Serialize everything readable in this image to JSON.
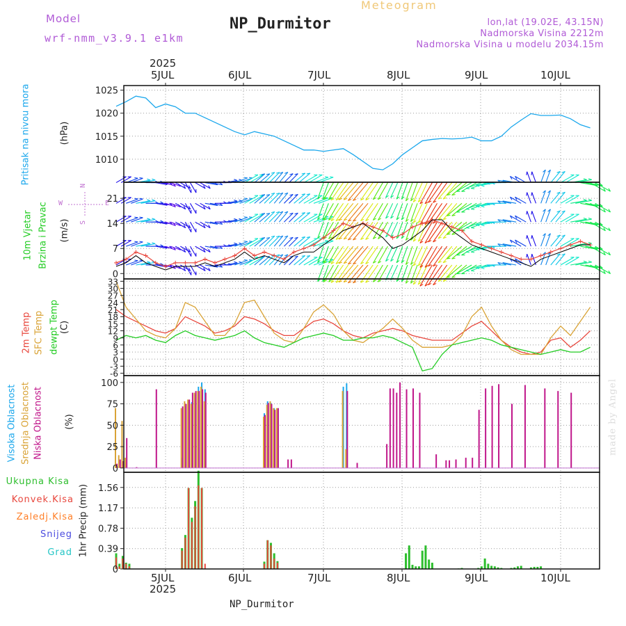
{
  "header": {
    "model_label": "Model",
    "model_version": "wrf-nmm_v3.9.1 e1km",
    "title": "NP_Durmitor",
    "meteogram_label": "Meteogram",
    "location": "lon,lat (19.02E, 43.15N)",
    "elevation": "Nadmorska Visina 2212m",
    "model_elevation": "Nadmorska Visina u modelu 2034.15m"
  },
  "time_axis": {
    "year": "2025",
    "day_labels": [
      "5JUL",
      "6JUL",
      "7JUL",
      "8JUL",
      "9JUL",
      "10JUL"
    ],
    "footer": "NP_Durmitor"
  },
  "watermark": "made by Angel",
  "colors": {
    "pressure": "#1aa7ec",
    "wind": "#000000",
    "wind_gust": "#e8463c",
    "t2m": "#e8463c",
    "sfc": "#d9a336",
    "dewpoint": "#22cc22",
    "cloud_high": "#1aa7ec",
    "cloud_mid": "#d9a336",
    "cloud_low": "#c0168a",
    "total_precip": "#2dbe2d",
    "conv_precip": "#e8463c",
    "frozen_precip": "#ff7f27",
    "snow": "#4a4adf",
    "hail": "#22c5c5"
  },
  "chart_data": [
    {
      "type": "line",
      "panel": "pressure",
      "side_label": "Pritisak na nivou mora",
      "unit": "(hPa)",
      "ylim": [
        1005,
        1026
      ],
      "yticks": [
        "1025",
        "1020",
        "1015",
        "1010"
      ],
      "x": [
        0,
        3,
        6,
        9,
        12,
        15,
        18,
        21,
        24,
        27,
        30,
        33,
        36,
        39,
        42,
        45,
        48,
        51,
        54,
        57,
        60,
        63,
        66,
        69,
        72,
        75,
        78,
        81,
        84,
        87,
        90,
        93,
        96,
        99,
        102,
        105,
        108,
        111,
        114,
        117,
        120,
        123,
        126,
        129,
        132,
        135,
        138,
        141,
        144
      ],
      "series": [
        {
          "values": [
            1021.5,
            1022.5,
            1023.7,
            1023.3,
            1021.2,
            1022.0,
            1021.4,
            1020.0,
            1020.0,
            1019.0,
            1018.0,
            1017.0,
            1016.0,
            1015.3,
            1016.0,
            1015.5,
            1015.0,
            1014.0,
            1013.0,
            1012.0,
            1012.0,
            1011.7,
            1012.0,
            1012.3,
            1011.0,
            1009.5,
            1008.0,
            1007.7,
            1009.0,
            1011.0,
            1012.5,
            1014.0,
            1014.3,
            1014.5,
            1014.4,
            1014.5,
            1014.8,
            1014.0,
            1014.0,
            1015.0,
            1017.0,
            1018.5,
            1019.9,
            1019.5,
            1019.5,
            1019.6,
            1018.8,
            1017.5,
            1016.8
          ]
        }
      ]
    },
    {
      "type": "line",
      "panel": "wind",
      "side_label_1": "10m Vjetar",
      "side_label_2": "Brzina i Pravac",
      "unit": "(m/s)",
      "legend_arrows": {
        "north": "N",
        "south": "S",
        "west": "W",
        "east": "E"
      },
      "ylim": [
        -1.5,
        25.5
      ],
      "yticks": [
        "21",
        "14",
        "7",
        "0"
      ],
      "x": [
        0,
        3,
        6,
        9,
        12,
        15,
        18,
        21,
        24,
        27,
        30,
        33,
        36,
        39,
        42,
        45,
        48,
        51,
        54,
        57,
        60,
        63,
        66,
        69,
        72,
        75,
        78,
        81,
        84,
        87,
        90,
        93,
        96,
        99,
        102,
        105,
        108,
        111,
        114,
        117,
        120,
        123,
        126,
        129,
        132,
        135,
        138,
        141,
        144
      ],
      "series": [
        {
          "name": "speed",
          "values": [
            2,
            3,
            5,
            3,
            2,
            1,
            2,
            2,
            2,
            3,
            2,
            3,
            4,
            6,
            4,
            5,
            4,
            3,
            5,
            6,
            6,
            8,
            10,
            12,
            13,
            14,
            12,
            10,
            7,
            8,
            10,
            12,
            15,
            15,
            12,
            10,
            8,
            7,
            6,
            5,
            4,
            3,
            2,
            4,
            5,
            6,
            7,
            8,
            8
          ]
        },
        {
          "name": "gust",
          "values": [
            3,
            4,
            6,
            5,
            3,
            2,
            3,
            3,
            3,
            4,
            3,
            4,
            5,
            7,
            5,
            6,
            5,
            4,
            6,
            7,
            8,
            10,
            12,
            14,
            13,
            14,
            13,
            12,
            10,
            11,
            13,
            14,
            15,
            14,
            13,
            12,
            9,
            8,
            7,
            6,
            5,
            4,
            4,
            5,
            6,
            7,
            8,
            9,
            8
          ]
        }
      ],
      "barb_direction_deg": [
        60,
        70,
        80,
        90,
        100,
        110,
        120,
        150,
        120,
        100,
        90,
        80,
        70,
        60,
        50,
        45,
        40,
        45,
        50,
        60,
        70,
        200,
        210,
        215,
        220,
        220,
        215,
        210,
        205,
        200,
        200,
        205,
        210,
        215,
        220,
        230,
        240,
        250,
        260,
        270,
        280,
        300,
        340,
        20,
        40,
        60,
        80,
        100,
        120
      ]
    },
    {
      "type": "line",
      "panel": "temperature",
      "side_label_1": "2m Temp",
      "side_label_2": "SFC Temp",
      "side_label_3": "dewpt Temp",
      "unit": "(C)",
      "ylim": [
        -7,
        34
      ],
      "yticks": [
        "33",
        "30",
        "27",
        "24",
        "21",
        "18",
        "15",
        "12",
        "9",
        "6",
        "3",
        "0",
        "-3",
        "-6"
      ],
      "x": [
        0,
        3,
        6,
        9,
        12,
        15,
        18,
        21,
        24,
        27,
        30,
        33,
        36,
        39,
        42,
        45,
        48,
        51,
        54,
        57,
        60,
        63,
        66,
        69,
        72,
        75,
        78,
        81,
        84,
        87,
        90,
        93,
        96,
        99,
        102,
        105,
        108,
        111,
        114,
        117,
        120,
        123,
        126,
        129,
        132,
        135,
        138,
        141,
        144
      ],
      "series": [
        {
          "name": "2m Temp",
          "values": [
            21,
            18,
            16,
            14,
            12,
            11,
            13,
            18,
            16,
            14,
            11,
            12,
            14,
            18,
            17,
            15,
            12,
            10,
            10,
            13,
            16,
            17,
            15,
            12,
            10,
            9,
            11,
            12,
            13,
            12,
            10,
            9,
            8,
            8,
            8,
            11,
            14,
            16,
            12,
            8,
            5,
            3,
            2,
            3,
            8,
            9,
            5,
            8,
            12
          ]
        },
        {
          "name": "SFC Temp",
          "values": [
            33,
            22,
            17,
            12,
            10,
            9,
            13,
            24,
            22,
            16,
            10,
            10,
            15,
            24,
            25,
            18,
            11,
            8,
            7,
            13,
            20,
            23,
            19,
            12,
            8,
            7,
            10,
            13,
            17,
            13,
            8,
            5,
            5,
            5,
            6,
            10,
            18,
            22,
            14,
            8,
            4,
            2,
            2,
            2,
            9,
            14,
            10,
            16,
            22
          ]
        },
        {
          "name": "dewpt Temp",
          "values": [
            8,
            10,
            9,
            10,
            8,
            7,
            10,
            12,
            10,
            9,
            8,
            9,
            10,
            12,
            9,
            7,
            6,
            5,
            7,
            9,
            10,
            11,
            10,
            8,
            8,
            9,
            9,
            10,
            9,
            7,
            5,
            -5,
            -4,
            2,
            6,
            7,
            8,
            9,
            8,
            6,
            5,
            4,
            3,
            2,
            3,
            4,
            3,
            3,
            5
          ]
        }
      ]
    },
    {
      "type": "bar",
      "panel": "clouds",
      "side_label_1": "Visoka Oblacnost",
      "side_label_2": "Srednja Oblacnost",
      "side_label_3": "Niska Oblacnost",
      "unit": "(%)",
      "ylim": [
        -5,
        108
      ],
      "yticks": [
        "100",
        "75",
        "50",
        "25",
        "0"
      ],
      "high_cloud": [
        [
          20,
          12
        ],
        [
          21,
          72
        ],
        [
          22,
          79
        ],
        [
          23,
          77
        ],
        [
          24,
          86
        ],
        [
          25,
          95
        ],
        [
          26,
          100
        ],
        [
          27,
          92
        ],
        [
          45,
          64
        ],
        [
          46,
          78
        ],
        [
          47,
          76
        ],
        [
          48,
          70
        ],
        [
          49,
          68
        ],
        [
          69,
          95
        ],
        [
          70,
          99
        ]
      ],
      "mid_cloud": [
        [
          0,
          70
        ],
        [
          1,
          15
        ],
        [
          2,
          55
        ],
        [
          3,
          12
        ],
        [
          20,
          70
        ],
        [
          21,
          78
        ],
        [
          22,
          80
        ],
        [
          23,
          75
        ],
        [
          24,
          88
        ],
        [
          25,
          90
        ],
        [
          26,
          95
        ],
        [
          27,
          78
        ],
        [
          45,
          60
        ],
        [
          46,
          74
        ],
        [
          47,
          78
        ],
        [
          48,
          70
        ],
        [
          49,
          70
        ],
        [
          69,
          90
        ],
        [
          70,
          22
        ]
      ],
      "low_cloud": [
        [
          0,
          5
        ],
        [
          1,
          10
        ],
        [
          2,
          8
        ],
        [
          3,
          35
        ],
        [
          6,
          1
        ],
        [
          12,
          92
        ],
        [
          20,
          72
        ],
        [
          21,
          75
        ],
        [
          22,
          80
        ],
        [
          23,
          88
        ],
        [
          24,
          90
        ],
        [
          25,
          90
        ],
        [
          26,
          92
        ],
        [
          27,
          88
        ],
        [
          45,
          62
        ],
        [
          46,
          76
        ],
        [
          47,
          75
        ],
        [
          48,
          68
        ],
        [
          49,
          70
        ],
        [
          52,
          10
        ],
        [
          53,
          10
        ],
        [
          70,
          90
        ],
        [
          73,
          6
        ],
        [
          82,
          28
        ],
        [
          83,
          93
        ],
        [
          84,
          93
        ],
        [
          85,
          88
        ],
        [
          86,
          100
        ],
        [
          88,
          92
        ],
        [
          90,
          93
        ],
        [
          92,
          88
        ],
        [
          97,
          16
        ],
        [
          100,
          9
        ],
        [
          101,
          9
        ],
        [
          103,
          10
        ],
        [
          106,
          12
        ],
        [
          108,
          12
        ],
        [
          110,
          68
        ],
        [
          112,
          93
        ],
        [
          114,
          96
        ],
        [
          116,
          98
        ],
        [
          120,
          75
        ],
        [
          124,
          97
        ],
        [
          130,
          93
        ],
        [
          134,
          90
        ],
        [
          138,
          88
        ]
      ]
    },
    {
      "type": "bar",
      "panel": "precipitation",
      "legend": [
        "Ukupna Kisa",
        "Konvek.Kisa",
        "Zaledj.Kisa",
        "Snijeg",
        "Grad"
      ],
      "unit": "1hr Precip (mm)",
      "ylim": [
        0,
        1.85
      ],
      "yticks": [
        "1.56",
        "1.17",
        "0.78",
        "0.39",
        "0"
      ],
      "total": [
        [
          0,
          0.3
        ],
        [
          1,
          0.1
        ],
        [
          2,
          0.25
        ],
        [
          3,
          0.12
        ],
        [
          4,
          0.1
        ],
        [
          20,
          0.4
        ],
        [
          21,
          0.65
        ],
        [
          22,
          1.55
        ],
        [
          23,
          0.98
        ],
        [
          24,
          1.3
        ],
        [
          25,
          1.88
        ],
        [
          26,
          1.55
        ],
        [
          45,
          0.14
        ],
        [
          46,
          0.55
        ],
        [
          47,
          0.5
        ],
        [
          48,
          0.3
        ],
        [
          49,
          0.15
        ],
        [
          88,
          0.3
        ],
        [
          89,
          0.45
        ],
        [
          90,
          0.08
        ],
        [
          91,
          0.05
        ],
        [
          92,
          0.05
        ],
        [
          93,
          0.35
        ],
        [
          94,
          0.45
        ],
        [
          95,
          0.18
        ],
        [
          96,
          0.12
        ],
        [
          104,
          0.01
        ],
        [
          105,
          0.02
        ],
        [
          110,
          0.02
        ],
        [
          111,
          0.05
        ],
        [
          112,
          0.2
        ],
        [
          113,
          0.1
        ],
        [
          114,
          0.06
        ],
        [
          115,
          0.05
        ],
        [
          116,
          0.03
        ],
        [
          117,
          0.02
        ],
        [
          120,
          0.02
        ],
        [
          121,
          0.03
        ],
        [
          122,
          0.05
        ],
        [
          123,
          0.06
        ],
        [
          126,
          0.03
        ],
        [
          127,
          0.04
        ],
        [
          128,
          0.04
        ],
        [
          129,
          0.05
        ]
      ],
      "convective": [
        [
          0,
          0.22
        ],
        [
          1,
          0.05
        ],
        [
          2,
          0.2
        ],
        [
          3,
          0.1
        ],
        [
          4,
          0.05
        ],
        [
          20,
          0.35
        ],
        [
          21,
          0.6
        ],
        [
          22,
          1.55
        ],
        [
          23,
          0.9
        ],
        [
          24,
          1.2
        ],
        [
          25,
          1.6
        ],
        [
          26,
          1.55
        ],
        [
          27,
          0.1
        ],
        [
          45,
          0.1
        ],
        [
          46,
          0.55
        ],
        [
          47,
          0.45
        ],
        [
          48,
          0.2
        ],
        [
          49,
          0.12
        ]
      ]
    }
  ]
}
